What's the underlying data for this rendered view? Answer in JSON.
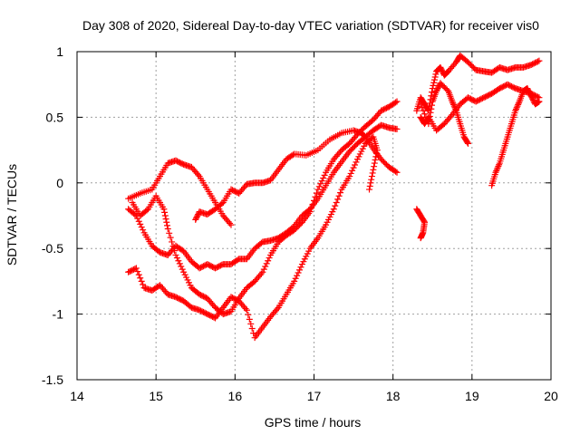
{
  "chart_data": {
    "type": "scatter",
    "title": "Day 308 of 2020, Sidereal Day-to-day VTEC variation (SDTVAR) for receiver vis0",
    "xlabel": "GPS time / hours",
    "ylabel": "SDTVAR / TECUs",
    "xlim": [
      14,
      20
    ],
    "ylim": [
      -1.5,
      1
    ],
    "x_ticks": [
      "14",
      "15",
      "16",
      "17",
      "18",
      "19",
      "20"
    ],
    "y_ticks": [
      "1",
      "0.5",
      "0",
      "-0.5",
      "-1",
      "-1.5"
    ],
    "x_tick_values": [
      14,
      15,
      16,
      17,
      18,
      19,
      20
    ],
    "y_tick_values": [
      1,
      0.5,
      0,
      -0.5,
      -1,
      -1.5
    ],
    "grid": true,
    "marker": "+",
    "color": "#ff0000",
    "series": [
      {
        "points": [
          [
            14.65,
            -0.12
          ],
          [
            14.8,
            -0.08
          ],
          [
            14.95,
            -0.05
          ],
          [
            15.05,
            0.05
          ],
          [
            15.15,
            0.15
          ],
          [
            15.25,
            0.17
          ],
          [
            15.35,
            0.14
          ],
          [
            15.45,
            0.12
          ],
          [
            15.55,
            0.05
          ],
          [
            15.65,
            -0.05
          ],
          [
            15.75,
            -0.15
          ],
          [
            15.85,
            -0.25
          ],
          [
            15.95,
            -0.32
          ]
        ]
      },
      {
        "points": [
          [
            15.5,
            -0.28
          ],
          [
            15.55,
            -0.22
          ],
          [
            15.65,
            -0.24
          ],
          [
            15.75,
            -0.2
          ],
          [
            15.85,
            -0.15
          ],
          [
            15.95,
            -0.05
          ],
          [
            16.05,
            -0.08
          ],
          [
            16.15,
            -0.01
          ],
          [
            16.25,
            0.0
          ],
          [
            16.35,
            0.0
          ],
          [
            16.45,
            0.02
          ],
          [
            16.55,
            0.1
          ],
          [
            16.65,
            0.18
          ],
          [
            16.75,
            0.22
          ],
          [
            16.9,
            0.21
          ],
          [
            17.05,
            0.25
          ],
          [
            17.2,
            0.33
          ],
          [
            17.35,
            0.38
          ],
          [
            17.5,
            0.4
          ],
          [
            17.6,
            0.38
          ],
          [
            17.65,
            0.35
          ],
          [
            17.75,
            0.26
          ],
          [
            17.85,
            0.18
          ],
          [
            17.95,
            0.12
          ],
          [
            18.05,
            0.08
          ]
        ]
      },
      {
        "points": [
          [
            14.65,
            -0.2
          ],
          [
            14.75,
            -0.25
          ],
          [
            14.85,
            -0.38
          ],
          [
            14.95,
            -0.48
          ],
          [
            15.05,
            -0.53
          ],
          [
            15.15,
            -0.55
          ],
          [
            15.25,
            -0.48
          ],
          [
            15.35,
            -0.52
          ],
          [
            15.45,
            -0.6
          ],
          [
            15.55,
            -0.65
          ],
          [
            15.65,
            -0.62
          ],
          [
            15.75,
            -0.65
          ],
          [
            15.85,
            -0.62
          ],
          [
            15.95,
            -0.62
          ],
          [
            16.05,
            -0.58
          ],
          [
            16.15,
            -0.58
          ],
          [
            16.25,
            -0.5
          ],
          [
            16.35,
            -0.45
          ],
          [
            16.45,
            -0.44
          ],
          [
            16.55,
            -0.42
          ],
          [
            16.65,
            -0.38
          ],
          [
            16.75,
            -0.33
          ],
          [
            16.85,
            -0.25
          ],
          [
            16.95,
            -0.2
          ],
          [
            17.05,
            -0.12
          ],
          [
            17.15,
            -0.02
          ],
          [
            17.25,
            0.08
          ],
          [
            17.35,
            0.16
          ],
          [
            17.45,
            0.24
          ],
          [
            17.55,
            0.3
          ],
          [
            17.65,
            0.35
          ],
          [
            17.75,
            0.4
          ],
          [
            17.85,
            0.44
          ],
          [
            17.95,
            0.42
          ],
          [
            18.05,
            0.41
          ]
        ]
      },
      {
        "points": [
          [
            14.7,
            -0.15
          ],
          [
            14.8,
            -0.25
          ],
          [
            14.9,
            -0.2
          ],
          [
            15.0,
            -0.1
          ],
          [
            15.1,
            -0.2
          ],
          [
            15.15,
            -0.35
          ],
          [
            15.25,
            -0.55
          ],
          [
            15.35,
            -0.68
          ],
          [
            15.45,
            -0.8
          ],
          [
            15.55,
            -0.85
          ],
          [
            15.65,
            -0.88
          ],
          [
            15.75,
            -0.95
          ],
          [
            15.85,
            -1.0
          ],
          [
            15.95,
            -0.98
          ],
          [
            16.05,
            -0.88
          ],
          [
            16.15,
            -0.8
          ],
          [
            16.25,
            -0.75
          ],
          [
            16.35,
            -0.68
          ],
          [
            16.45,
            -0.55
          ],
          [
            16.55,
            -0.45
          ],
          [
            16.65,
            -0.4
          ],
          [
            16.75,
            -0.36
          ],
          [
            16.85,
            -0.3
          ],
          [
            16.95,
            -0.22
          ],
          [
            17.05,
            -0.05
          ],
          [
            17.15,
            0.08
          ],
          [
            17.25,
            0.18
          ],
          [
            17.35,
            0.25
          ],
          [
            17.45,
            0.3
          ],
          [
            17.55,
            0.37
          ],
          [
            17.65,
            0.43
          ],
          [
            17.75,
            0.48
          ],
          [
            17.85,
            0.55
          ],
          [
            17.95,
            0.58
          ],
          [
            18.05,
            0.62
          ]
        ]
      },
      {
        "points": [
          [
            14.65,
            -0.68
          ],
          [
            14.75,
            -0.65
          ],
          [
            14.85,
            -0.8
          ],
          [
            14.95,
            -0.82
          ],
          [
            15.05,
            -0.78
          ],
          [
            15.15,
            -0.85
          ],
          [
            15.25,
            -0.87
          ],
          [
            15.35,
            -0.9
          ],
          [
            15.45,
            -0.95
          ],
          [
            15.55,
            -0.97
          ],
          [
            15.65,
            -1.0
          ],
          [
            15.75,
            -1.03
          ],
          [
            15.85,
            -0.95
          ],
          [
            15.95,
            -0.87
          ],
          [
            16.05,
            -0.9
          ],
          [
            16.15,
            -0.97
          ],
          [
            16.25,
            -1.18
          ],
          [
            16.35,
            -1.1
          ],
          [
            16.45,
            -1.02
          ],
          [
            16.55,
            -0.95
          ],
          [
            16.65,
            -0.85
          ],
          [
            16.75,
            -0.75
          ],
          [
            16.85,
            -0.62
          ],
          [
            16.95,
            -0.5
          ],
          [
            17.05,
            -0.42
          ],
          [
            17.15,
            -0.32
          ],
          [
            17.25,
            -0.2
          ],
          [
            17.35,
            -0.05
          ],
          [
            17.45,
            0.05
          ],
          [
            17.55,
            0.18
          ],
          [
            17.65,
            0.3
          ],
          [
            17.75,
            0.35
          ],
          [
            17.8,
            0.25
          ],
          [
            17.75,
            0.1
          ],
          [
            17.7,
            -0.05
          ]
        ]
      },
      {
        "points": [
          [
            18.3,
            -0.2
          ],
          [
            18.35,
            -0.25
          ],
          [
            18.4,
            -0.3
          ],
          [
            18.38,
            -0.38
          ],
          [
            18.35,
            -0.42
          ]
        ]
      },
      {
        "points": [
          [
            18.3,
            0.55
          ],
          [
            18.35,
            0.65
          ],
          [
            18.4,
            0.6
          ],
          [
            18.45,
            0.55
          ],
          [
            18.5,
            0.72
          ],
          [
            18.55,
            0.85
          ],
          [
            18.6,
            0.88
          ],
          [
            18.65,
            0.82
          ],
          [
            18.7,
            0.85
          ],
          [
            18.8,
            0.92
          ],
          [
            18.85,
            0.97
          ],
          [
            18.95,
            0.92
          ],
          [
            19.05,
            0.86
          ],
          [
            19.15,
            0.85
          ],
          [
            19.25,
            0.84
          ],
          [
            19.35,
            0.88
          ],
          [
            19.45,
            0.86
          ],
          [
            19.55,
            0.88
          ],
          [
            19.65,
            0.88
          ],
          [
            19.75,
            0.9
          ],
          [
            19.85,
            0.93
          ]
        ]
      },
      {
        "points": [
          [
            18.35,
            0.5
          ],
          [
            18.4,
            0.45
          ],
          [
            18.45,
            0.5
          ],
          [
            18.55,
            0.4
          ],
          [
            18.65,
            0.45
          ],
          [
            18.75,
            0.52
          ],
          [
            18.85,
            0.6
          ],
          [
            18.95,
            0.65
          ],
          [
            19.05,
            0.62
          ],
          [
            19.15,
            0.65
          ],
          [
            19.25,
            0.68
          ],
          [
            19.35,
            0.72
          ],
          [
            19.45,
            0.75
          ],
          [
            19.55,
            0.72
          ],
          [
            19.65,
            0.7
          ],
          [
            19.75,
            0.68
          ],
          [
            19.85,
            0.65
          ]
        ]
      },
      {
        "points": [
          [
            18.35,
            0.6
          ],
          [
            18.45,
            0.45
          ],
          [
            18.5,
            0.62
          ],
          [
            18.55,
            0.7
          ],
          [
            18.6,
            0.76
          ],
          [
            18.7,
            0.7
          ],
          [
            18.75,
            0.62
          ],
          [
            18.8,
            0.55
          ],
          [
            18.85,
            0.45
          ],
          [
            18.9,
            0.35
          ],
          [
            18.95,
            0.3
          ]
        ]
      },
      {
        "points": [
          [
            19.25,
            -0.02
          ],
          [
            19.3,
            0.08
          ],
          [
            19.35,
            0.15
          ],
          [
            19.4,
            0.25
          ],
          [
            19.45,
            0.35
          ],
          [
            19.5,
            0.45
          ],
          [
            19.55,
            0.55
          ],
          [
            19.6,
            0.62
          ],
          [
            19.65,
            0.7
          ],
          [
            19.7,
            0.72
          ],
          [
            19.75,
            0.66
          ],
          [
            19.8,
            0.6
          ],
          [
            19.85,
            0.62
          ]
        ]
      }
    ]
  }
}
